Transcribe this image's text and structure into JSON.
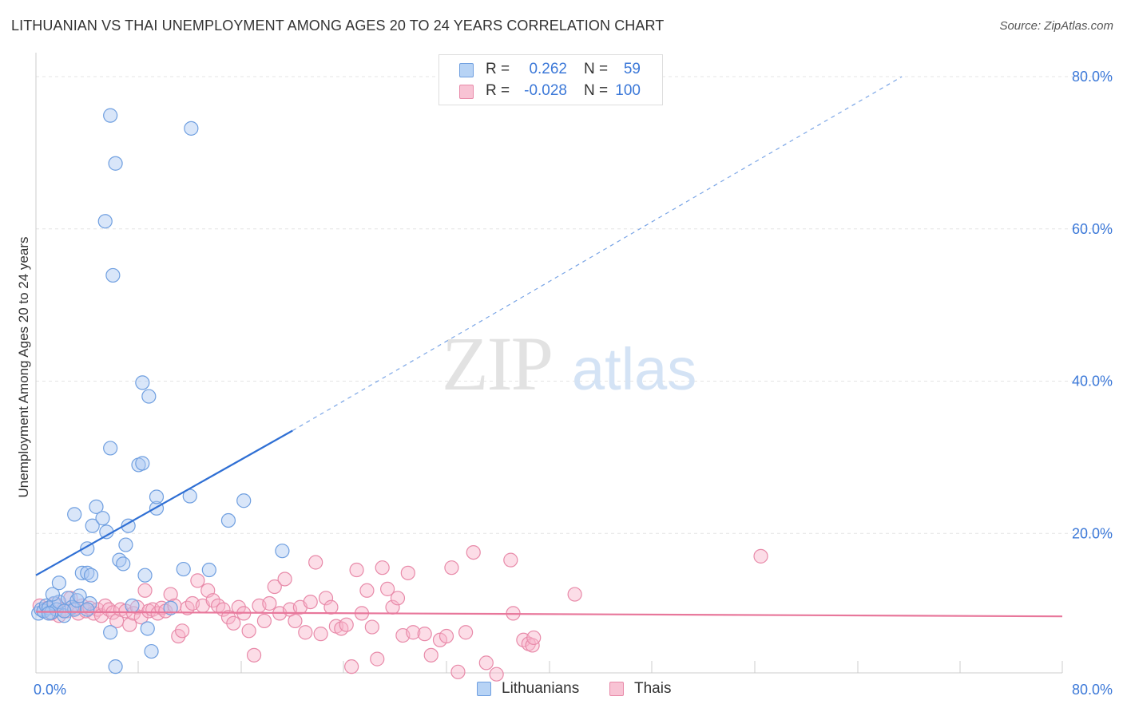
{
  "title": "LITHUANIAN VS THAI UNEMPLOYMENT AMONG AGES 20 TO 24 YEARS CORRELATION CHART",
  "source": "Source: ZipAtlas.com",
  "watermark": {
    "zip": "ZIP",
    "atlas": "atlas"
  },
  "legend": {
    "r_label": "R =",
    "n_label": "N =",
    "rows": [
      {
        "name": "Lithuanians",
        "r": "0.262",
        "n": "59",
        "fill": "#b7d3f5",
        "stroke": "#6f9fe0"
      },
      {
        "name": "Thais",
        "r": "-0.028",
        "n": "100",
        "fill": "#f8c3d4",
        "stroke": "#e88aa9"
      }
    ]
  },
  "colors": {
    "blue": "#3b78d8",
    "pink": "#e8779b",
    "grid": "#e0e0e0",
    "axis_text": "#3b78d8"
  },
  "chart_data": {
    "type": "scatter",
    "title": "LITHUANIAN VS THAI UNEMPLOYMENT AMONG AGES 20 TO 24 YEARS CORRELATION CHART",
    "xlabel": "",
    "ylabel": "Unemployment Among Ages 20 to 24 years",
    "xlim": [
      0,
      80
    ],
    "ylim": [
      0,
      80
    ],
    "x_tick_labels": [
      "0.0%",
      "80.0%"
    ],
    "y_tick_labels": [
      "20.0%",
      "40.0%",
      "60.0%",
      "80.0%"
    ],
    "y_ticks": [
      20,
      40,
      60,
      80
    ],
    "grid": true,
    "legend_position": "bottom",
    "series": [
      {
        "name": "Lithuanians",
        "color": "#6f9fe0",
        "points": [
          [
            0.2,
            9.5
          ],
          [
            0.4,
            10.0
          ],
          [
            0.6,
            9.8
          ],
          [
            0.8,
            10.5
          ],
          [
            1.0,
            10.2
          ],
          [
            1.2,
            9.6
          ],
          [
            1.4,
            10.8
          ],
          [
            1.6,
            10.0
          ],
          [
            1.8,
            11.0
          ],
          [
            1.3,
            12.0
          ],
          [
            1.8,
            13.5
          ],
          [
            2.2,
            9.2
          ],
          [
            2.5,
            11.5
          ],
          [
            2.8,
            10.3
          ],
          [
            3.0,
            10.0
          ],
          [
            3.2,
            11.2
          ],
          [
            3.4,
            11.8
          ],
          [
            3.6,
            14.8
          ],
          [
            4.0,
            14.8
          ],
          [
            4.3,
            14.5
          ],
          [
            4.2,
            10.8
          ],
          [
            3.0,
            22.5
          ],
          [
            4.0,
            18.0
          ],
          [
            4.4,
            21.0
          ],
          [
            4.7,
            23.5
          ],
          [
            5.2,
            22.0
          ],
          [
            5.5,
            20.2
          ],
          [
            5.8,
            7.0
          ],
          [
            6.2,
            2.5
          ],
          [
            6.5,
            16.5
          ],
          [
            6.8,
            16.0
          ],
          [
            7.0,
            18.5
          ],
          [
            7.2,
            21.0
          ],
          [
            7.5,
            10.5
          ],
          [
            8.0,
            29.0
          ],
          [
            8.3,
            29.2
          ],
          [
            8.5,
            14.5
          ],
          [
            8.8,
            38.0
          ],
          [
            9.0,
            4.5
          ],
          [
            9.4,
            23.3
          ],
          [
            9.4,
            24.8
          ],
          [
            10.5,
            10.2
          ],
          [
            11.5,
            15.3
          ],
          [
            12.0,
            24.9
          ],
          [
            13.5,
            15.2
          ],
          [
            15.0,
            21.7
          ],
          [
            16.2,
            24.3
          ],
          [
            19.2,
            17.7
          ],
          [
            5.8,
            31.2
          ],
          [
            8.3,
            39.8
          ],
          [
            6.0,
            53.9
          ],
          [
            5.4,
            61.0
          ],
          [
            6.2,
            68.6
          ],
          [
            5.8,
            74.9
          ],
          [
            12.1,
            73.2
          ],
          [
            8.7,
            7.5
          ],
          [
            4.0,
            10.0
          ],
          [
            2.2,
            9.8
          ],
          [
            1.0,
            9.5
          ]
        ]
      },
      {
        "name": "Thais",
        "color": "#e88aa9",
        "points": [
          [
            0.3,
            10.5
          ],
          [
            0.6,
            9.8
          ],
          [
            0.9,
            10.2
          ],
          [
            1.2,
            9.5
          ],
          [
            1.5,
            10.8
          ],
          [
            1.8,
            9.2
          ],
          [
            2.1,
            10.0
          ],
          [
            2.4,
            9.8
          ],
          [
            2.7,
            11.5
          ],
          [
            3.0,
            10.2
          ],
          [
            3.3,
            9.5
          ],
          [
            3.6,
            10.5
          ],
          [
            3.9,
            9.8
          ],
          [
            4.2,
            10.2
          ],
          [
            4.5,
            9.5
          ],
          [
            4.8,
            10.0
          ],
          [
            5.1,
            9.2
          ],
          [
            5.4,
            10.5
          ],
          [
            5.7,
            10.0
          ],
          [
            6.0,
            9.6
          ],
          [
            6.3,
            8.5
          ],
          [
            6.6,
            10.0
          ],
          [
            7.0,
            9.8
          ],
          [
            7.3,
            8.0
          ],
          [
            7.6,
            9.5
          ],
          [
            7.9,
            10.3
          ],
          [
            8.2,
            9.0
          ],
          [
            8.5,
            12.5
          ],
          [
            8.8,
            9.8
          ],
          [
            9.1,
            10.0
          ],
          [
            9.5,
            9.5
          ],
          [
            9.8,
            10.2
          ],
          [
            10.1,
            9.8
          ],
          [
            10.5,
            12.0
          ],
          [
            10.8,
            10.5
          ],
          [
            11.1,
            6.5
          ],
          [
            11.4,
            7.2
          ],
          [
            11.8,
            10.2
          ],
          [
            12.2,
            10.8
          ],
          [
            12.6,
            13.8
          ],
          [
            13.0,
            10.5
          ],
          [
            13.4,
            12.5
          ],
          [
            13.8,
            11.2
          ],
          [
            14.2,
            10.5
          ],
          [
            14.6,
            10.0
          ],
          [
            15.0,
            9.0
          ],
          [
            15.4,
            8.2
          ],
          [
            15.8,
            10.3
          ],
          [
            16.2,
            9.5
          ],
          [
            16.6,
            7.2
          ],
          [
            17.0,
            4.0
          ],
          [
            17.4,
            10.5
          ],
          [
            17.8,
            8.5
          ],
          [
            18.2,
            10.8
          ],
          [
            18.6,
            13.0
          ],
          [
            19.0,
            9.5
          ],
          [
            19.4,
            14.0
          ],
          [
            19.8,
            10.0
          ],
          [
            20.2,
            8.5
          ],
          [
            20.6,
            10.3
          ],
          [
            21.0,
            7.0
          ],
          [
            21.4,
            11.0
          ],
          [
            21.8,
            16.2
          ],
          [
            22.2,
            6.8
          ],
          [
            22.6,
            11.5
          ],
          [
            23.0,
            10.3
          ],
          [
            23.4,
            7.8
          ],
          [
            23.8,
            7.5
          ],
          [
            24.2,
            8.0
          ],
          [
            24.6,
            2.5
          ],
          [
            25.0,
            15.2
          ],
          [
            25.4,
            9.5
          ],
          [
            25.8,
            12.5
          ],
          [
            26.2,
            7.7
          ],
          [
            26.6,
            3.5
          ],
          [
            27.0,
            15.5
          ],
          [
            27.4,
            12.7
          ],
          [
            27.8,
            10.3
          ],
          [
            28.2,
            11.5
          ],
          [
            28.6,
            6.6
          ],
          [
            29.0,
            14.8
          ],
          [
            29.4,
            7.0
          ],
          [
            30.3,
            6.8
          ],
          [
            30.8,
            4.0
          ],
          [
            31.5,
            6.0
          ],
          [
            32.0,
            6.5
          ],
          [
            32.4,
            15.5
          ],
          [
            32.9,
            1.8
          ],
          [
            33.5,
            7.0
          ],
          [
            34.1,
            17.5
          ],
          [
            35.1,
            3.0
          ],
          [
            35.9,
            1.5
          ],
          [
            37.0,
            16.5
          ],
          [
            37.2,
            9.5
          ],
          [
            38.0,
            6.0
          ],
          [
            38.4,
            5.5
          ],
          [
            38.7,
            5.3
          ],
          [
            38.8,
            6.3
          ],
          [
            42.0,
            12.0
          ],
          [
            56.5,
            17.0
          ]
        ]
      }
    ],
    "trend_lines": [
      {
        "series": "Lithuanians",
        "solid_from": [
          0,
          14.5
        ],
        "solid_to": [
          20,
          33.5
        ],
        "dashed_to": [
          67.5,
          80
        ]
      },
      {
        "series": "Thais",
        "from": [
          0,
          9.7
        ],
        "to": [
          80,
          9.1
        ]
      }
    ]
  }
}
